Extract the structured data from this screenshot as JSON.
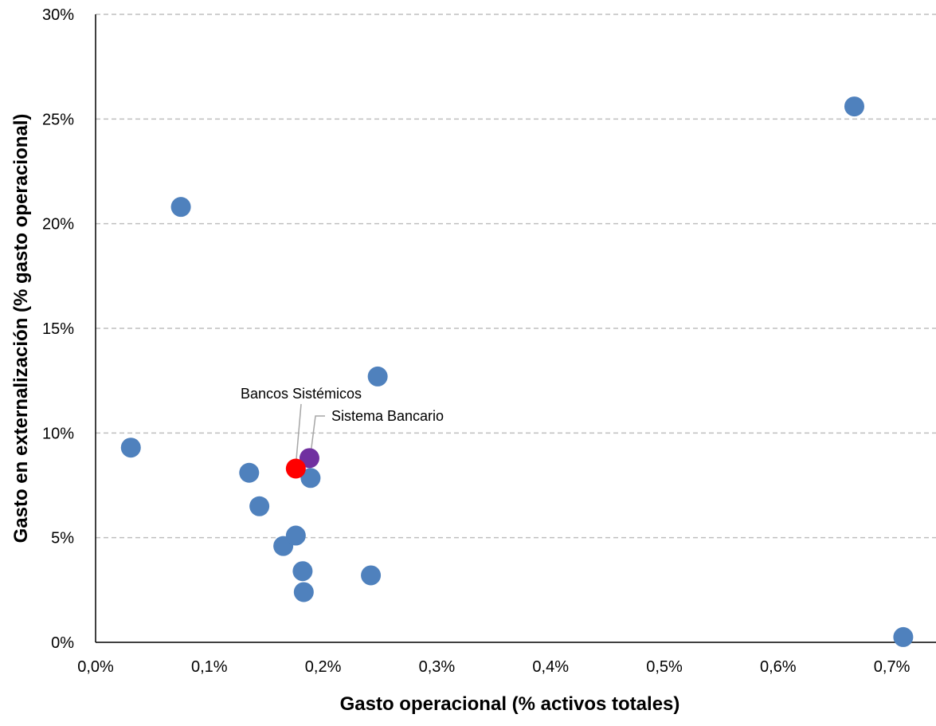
{
  "chart_data": {
    "type": "scatter",
    "title": "",
    "xlabel": "Gasto operacional (% activos totales)",
    "ylabel": "Gasto en externalización (% gasto operacional)",
    "xlim": [
      0,
      0.75
    ],
    "ylim": [
      0,
      30
    ],
    "x_ticks": [
      0,
      0.1,
      0.2,
      0.3,
      0.4,
      0.5,
      0.6,
      0.7
    ],
    "x_tick_labels": [
      "0,0%",
      "0,1%",
      "0,2%",
      "0,3%",
      "0,4%",
      "0,5%",
      "0,6%",
      "0,7%"
    ],
    "y_ticks": [
      0,
      5,
      10,
      15,
      20,
      25,
      30
    ],
    "y_tick_labels": [
      "0%",
      "5%",
      "10%",
      "15%",
      "20%",
      "25%",
      "30%"
    ],
    "grid": "horizontal-dashed",
    "series": [
      {
        "color": "#4f81bd",
        "points": [
          {
            "x": 0.031,
            "y": 9.3
          },
          {
            "x": 0.075,
            "y": 20.8
          },
          {
            "x": 0.135,
            "y": 8.1
          },
          {
            "x": 0.144,
            "y": 6.5
          },
          {
            "x": 0.165,
            "y": 4.6
          },
          {
            "x": 0.176,
            "y": 5.1
          },
          {
            "x": 0.182,
            "y": 3.4
          },
          {
            "x": 0.183,
            "y": 2.4
          },
          {
            "x": 0.189,
            "y": 7.85
          },
          {
            "x": 0.242,
            "y": 3.2
          },
          {
            "x": 0.248,
            "y": 12.7
          },
          {
            "x": 0.667,
            "y": 25.6
          },
          {
            "x": 0.71,
            "y": 0.25
          }
        ]
      },
      {
        "name": "Sistema Bancario",
        "color": "#7030a0",
        "points": [
          {
            "x": 0.188,
            "y": 8.8
          }
        ]
      },
      {
        "name": "Bancos Sistémicos",
        "color": "#ff0000",
        "points": [
          {
            "x": 0.176,
            "y": 8.3
          }
        ]
      }
    ],
    "annotations": [
      {
        "text": "Bancos Sistémicos",
        "x": 0.176,
        "y": 8.3
      },
      {
        "text": "Sistema Bancario",
        "x": 0.188,
        "y": 8.8
      }
    ]
  }
}
